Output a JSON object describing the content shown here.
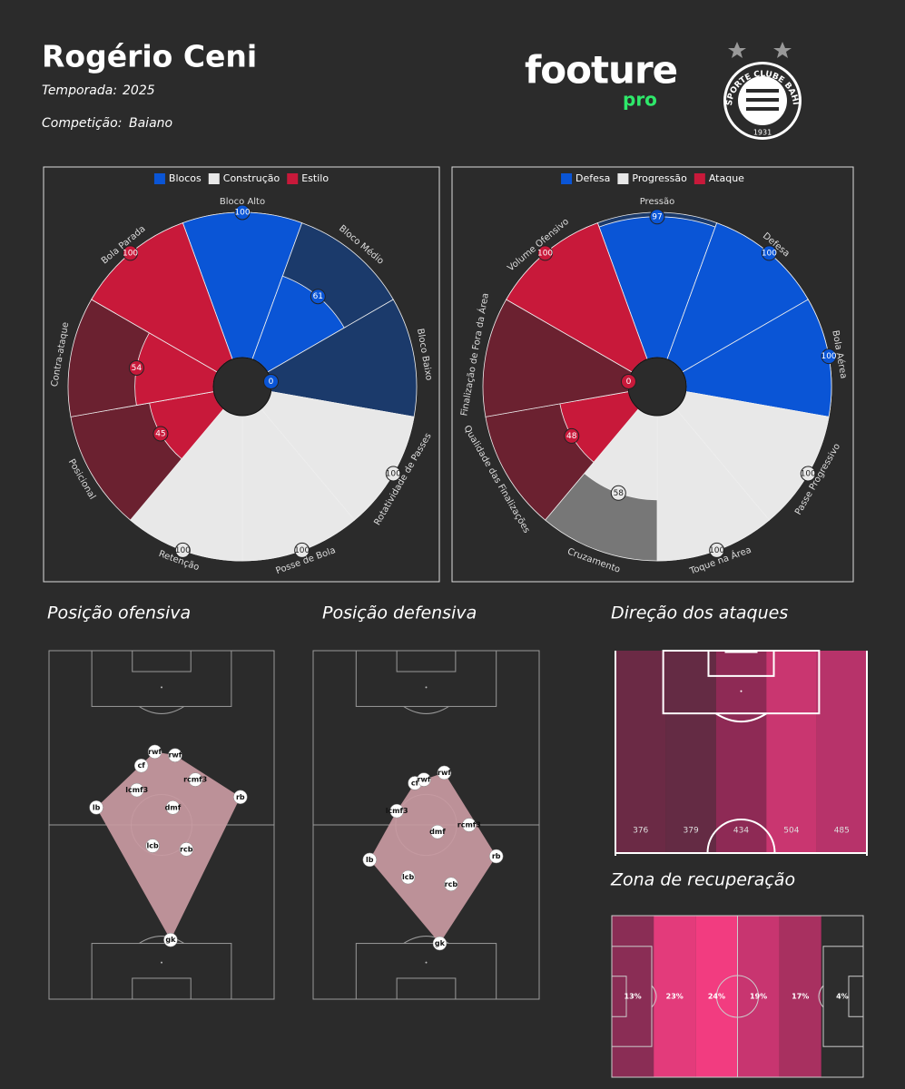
{
  "header": {
    "title": "Rogério Ceni",
    "season_label": "Temporada:",
    "season": "2025",
    "competition_label": "Competição:",
    "competition": "Baiano",
    "logo": "footure",
    "logo_sub": "pro",
    "badge_text": "ESPORTE CLUBE BAHIA",
    "badge_year": "1931"
  },
  "chart_data": [
    {
      "type": "pizza",
      "rlim": [
        0,
        100
      ],
      "series": [
        {
          "name": "Blocos",
          "color": "#0a55d6",
          "background": "#1b3a6b",
          "categories": [
            "Bloco Alto",
            "Bloco Médio",
            "Bloco Baixo"
          ],
          "values": [
            100,
            61,
            0
          ]
        },
        {
          "name": "Construção",
          "color": "#e8e8e8",
          "background": "#777777",
          "categories": [
            "Rotatividade de Passes",
            "Posse de Bola",
            "Retenção"
          ],
          "values": [
            100,
            100,
            100
          ]
        },
        {
          "name": "Estilo",
          "color": "#c8193a",
          "background": "#6b2130",
          "categories": [
            "Posicional",
            "Contra-ataque",
            "Bola Parada"
          ],
          "values": [
            45,
            54,
            100
          ]
        }
      ]
    },
    {
      "type": "pizza",
      "rlim": [
        0,
        100
      ],
      "series": [
        {
          "name": "Defesa",
          "color": "#0a55d6",
          "background": "#1b3a6b",
          "categories": [
            "Pressão",
            "Defesa",
            "Bola Aérea"
          ],
          "values": [
            97,
            100,
            100
          ]
        },
        {
          "name": "Progressão",
          "color": "#e8e8e8",
          "background": "#777777",
          "categories": [
            "Passe Progressivo",
            "Toque na Área",
            "Cruzamento"
          ],
          "values": [
            100,
            100,
            58
          ]
        },
        {
          "name": "Ataque",
          "color": "#c8193a",
          "background": "#6b2130",
          "categories": [
            "Qualidade das Finalizações",
            "Finalização de Fora da Área",
            "Volume Ofensivo"
          ],
          "values": [
            48,
            0,
            100
          ]
        }
      ]
    },
    {
      "type": "pitch-positions",
      "title": "Posição ofensiva",
      "xlim": [
        0,
        100
      ],
      "ylim": [
        0,
        100
      ],
      "color": "#ffffff",
      "area_color": "#c99aa2",
      "labels": [
        "rwf",
        "rwf",
        "cf",
        "lcmf3",
        "rcmf3",
        "rb",
        "lb",
        "dmf",
        "lcb",
        "rcb",
        "gk"
      ],
      "x": [
        47,
        56,
        41,
        39,
        65,
        85,
        21,
        55,
        46,
        61,
        54
      ],
      "y": [
        71,
        70,
        67,
        60,
        63,
        58,
        55,
        55,
        44,
        43,
        17
      ]
    },
    {
      "type": "pitch-positions",
      "title": "Posição defensiva",
      "xlim": [
        0,
        100
      ],
      "ylim": [
        0,
        100
      ],
      "color": "#ffffff",
      "area_color": "#c99aa2",
      "labels": [
        "cf",
        "rwf",
        "rwf",
        "lcmf3",
        "rcmf3",
        "dmf",
        "rb",
        "lb",
        "lcb",
        "rcb",
        "gk"
      ],
      "x": [
        45,
        49,
        58,
        37,
        69,
        55,
        81,
        25,
        42,
        61,
        56
      ],
      "y": [
        62,
        63,
        65,
        54,
        50,
        48,
        41,
        40,
        35,
        33,
        16
      ]
    },
    {
      "type": "pitch-zones",
      "title": "Direção dos ataques",
      "orientation": "vertical",
      "values": [
        376,
        379,
        434,
        504,
        485
      ],
      "colors": [
        "#6b2a45",
        "#642b44",
        "#8e2a55",
        "#c93670",
        "#b7336a"
      ]
    },
    {
      "type": "pitch-zones",
      "title": "Zona de recuperação",
      "orientation": "horizontal",
      "values": [
        13,
        23,
        24,
        19,
        17,
        4
      ],
      "value_labels": [
        "13%",
        "23%",
        "24%",
        "19%",
        "17%",
        "4%"
      ],
      "colors": [
        "#8a2d55",
        "#e33b7b",
        "#f23c80",
        "#c83570",
        "#a83060",
        "#2d2d2d"
      ]
    }
  ]
}
